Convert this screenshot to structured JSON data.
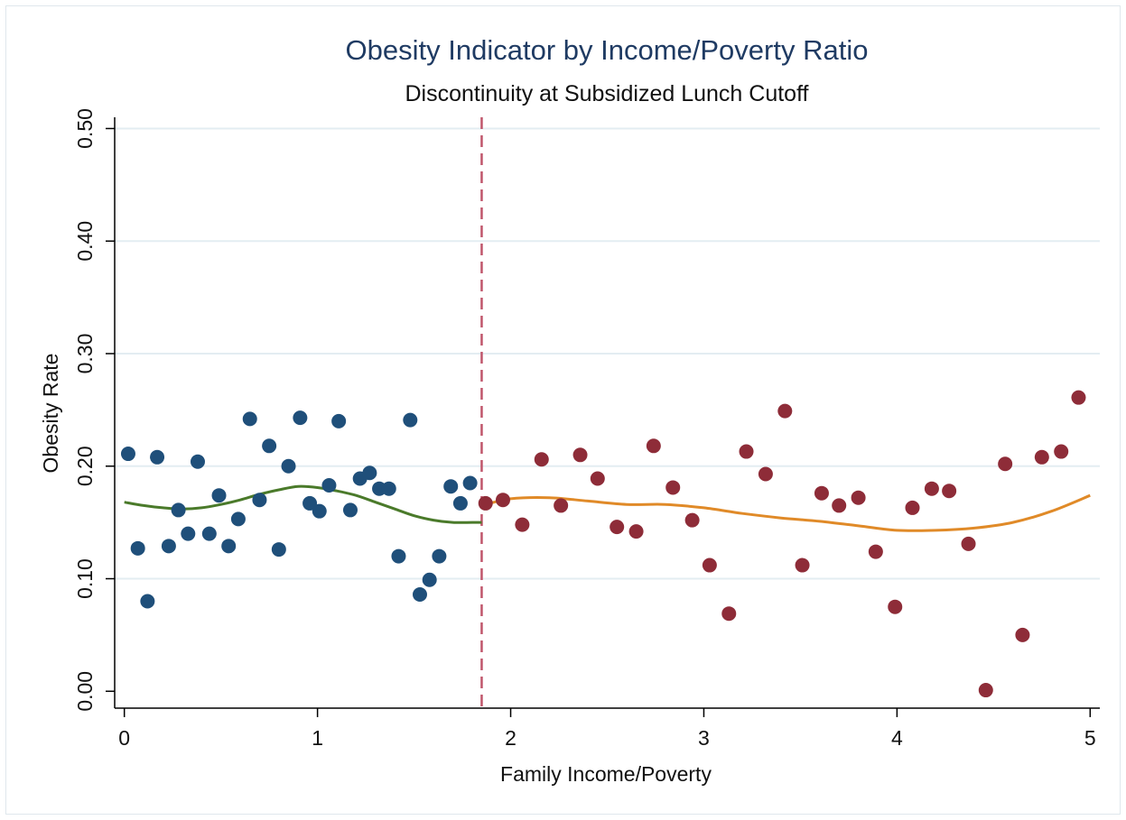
{
  "chart_data": {
    "type": "scatter",
    "title": "Obesity Indicator by Income/Poverty Ratio",
    "subtitle": "Discontinuity at Subsidized Lunch Cutoff",
    "xlabel": "Family Income/Poverty",
    "ylabel": "Obesity Rate",
    "xlim": [
      -0.05,
      5.05
    ],
    "ylim": [
      -0.015,
      0.51
    ],
    "x_ticks": [
      0,
      1,
      2,
      3,
      4,
      5
    ],
    "x_tick_labels": [
      "0",
      "1",
      "2",
      "3",
      "4",
      "5"
    ],
    "y_ticks": [
      0.0,
      0.1,
      0.2,
      0.3,
      0.4,
      0.5
    ],
    "y_tick_labels": [
      "0.00",
      "0.10",
      "0.20",
      "0.30",
      "0.40",
      "0.50"
    ],
    "grid": "horizontal",
    "cutoff_x": 1.85,
    "colors": {
      "below_points": "#1f4f7a",
      "above_points": "#8e2c38",
      "below_fit": "#4a7a2a",
      "above_fit": "#e08a28",
      "cutoff_line": "#c0566b",
      "grid": "#e3edf2",
      "title": "#1f3b63"
    },
    "series": [
      {
        "kind": "points",
        "color_key": "below_points",
        "x": [
          0.02,
          0.07,
          0.12,
          0.17,
          0.23,
          0.28,
          0.33,
          0.38,
          0.44,
          0.49,
          0.54,
          0.59,
          0.65,
          0.7,
          0.75,
          0.8,
          0.85,
          0.91,
          0.96,
          1.01,
          1.06,
          1.11,
          1.17,
          1.22,
          1.27,
          1.32,
          1.37,
          1.42,
          1.48,
          1.53,
          1.58,
          1.63,
          1.69,
          1.74,
          1.79
        ],
        "y": [
          0.211,
          0.127,
          0.08,
          0.208,
          0.129,
          0.161,
          0.14,
          0.204,
          0.14,
          0.174,
          0.129,
          0.153,
          0.242,
          0.17,
          0.218,
          0.126,
          0.2,
          0.243,
          0.167,
          0.16,
          0.183,
          0.24,
          0.161,
          0.189,
          0.194,
          0.18,
          0.18,
          0.12,
          0.241,
          0.086,
          0.099,
          0.12,
          0.182,
          0.167,
          0.185
        ]
      },
      {
        "kind": "points",
        "color_key": "above_points",
        "x": [
          1.87,
          1.96,
          2.06,
          2.16,
          2.26,
          2.36,
          2.45,
          2.55,
          2.65,
          2.74,
          2.84,
          2.94,
          3.03,
          3.13,
          3.22,
          3.32,
          3.42,
          3.51,
          3.61,
          3.7,
          3.8,
          3.89,
          3.99,
          4.08,
          4.18,
          4.27,
          4.37,
          4.46,
          4.56,
          4.65,
          4.75,
          4.85,
          4.94
        ],
        "y": [
          0.167,
          0.17,
          0.148,
          0.206,
          0.165,
          0.21,
          0.189,
          0.146,
          0.142,
          0.218,
          0.181,
          0.152,
          0.112,
          0.069,
          0.213,
          0.193,
          0.249,
          0.112,
          0.176,
          0.165,
          0.172,
          0.124,
          0.075,
          0.163,
          0.18,
          0.178,
          0.131,
          0.001,
          0.202,
          0.05,
          0.208,
          0.213,
          0.261
        ]
      },
      {
        "kind": "line",
        "color_key": "below_fit",
        "x": [
          0.0,
          0.1,
          0.2,
          0.3,
          0.4,
          0.5,
          0.6,
          0.7,
          0.8,
          0.9,
          1.0,
          1.1,
          1.2,
          1.3,
          1.4,
          1.5,
          1.6,
          1.7,
          1.8,
          1.85
        ],
        "y": [
          0.168,
          0.165,
          0.163,
          0.162,
          0.163,
          0.166,
          0.17,
          0.175,
          0.179,
          0.182,
          0.181,
          0.178,
          0.174,
          0.168,
          0.162,
          0.156,
          0.152,
          0.15,
          0.15,
          0.15
        ]
      },
      {
        "kind": "line",
        "color_key": "above_fit",
        "x": [
          1.85,
          2.0,
          2.2,
          2.4,
          2.6,
          2.8,
          3.0,
          3.2,
          3.4,
          3.6,
          3.8,
          4.0,
          4.2,
          4.4,
          4.6,
          4.8,
          5.0
        ],
        "y": [
          0.165,
          0.171,
          0.172,
          0.169,
          0.166,
          0.166,
          0.163,
          0.158,
          0.154,
          0.151,
          0.147,
          0.143,
          0.143,
          0.145,
          0.15,
          0.16,
          0.174
        ]
      }
    ]
  }
}
